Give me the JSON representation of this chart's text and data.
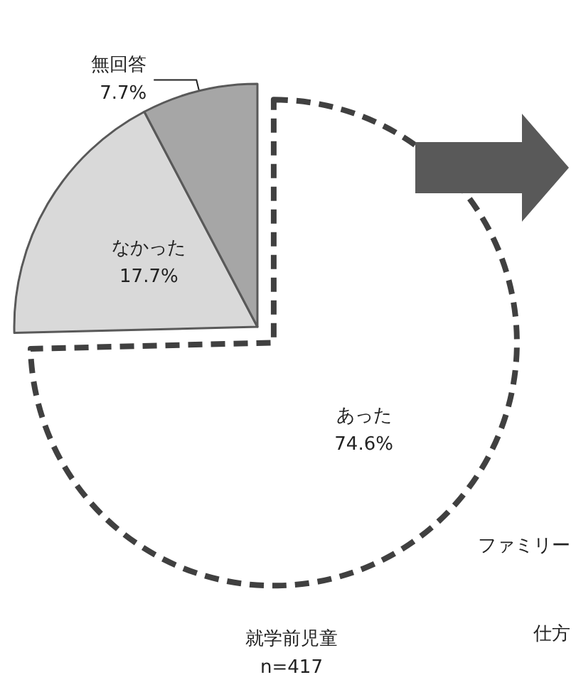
{
  "chart_data": {
    "type": "pie",
    "subtitle": "就学前児童\nn=417",
    "categories": [
      "あった",
      "なかった",
      "無回答"
    ],
    "values": [
      74.6,
      17.7,
      7.7
    ],
    "colors": [
      "#ffffff",
      "#d9d9d9",
      "#a6a6a6"
    ],
    "value_labels": [
      "74.6%",
      "17.7%",
      "7.7%"
    ],
    "annotations": [
      "ファミリー",
      "仕方"
    ]
  }
}
